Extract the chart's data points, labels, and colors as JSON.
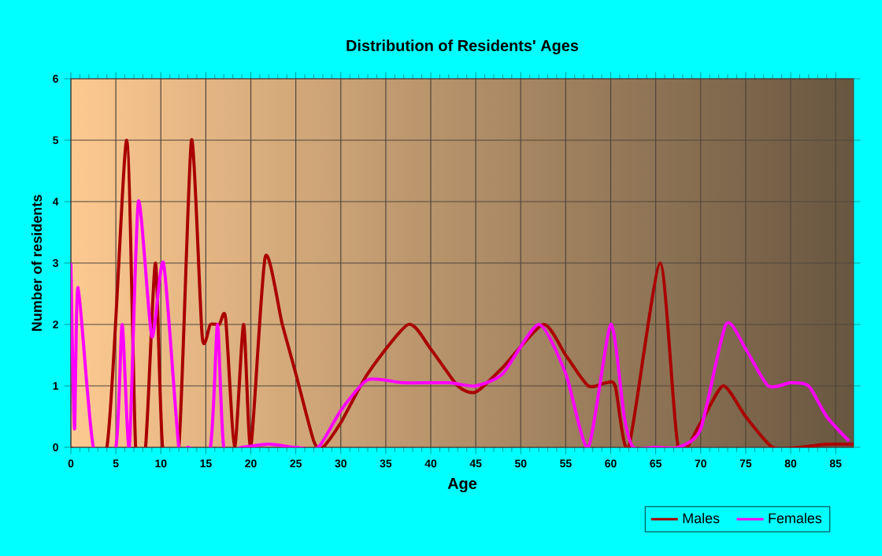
{
  "chart_data": {
    "type": "line",
    "title": "Distribution of Residents' Ages",
    "xlabel": "Age",
    "ylabel": "Number of residents",
    "xlim": [
      0,
      87
    ],
    "xticks": [
      0,
      5,
      10,
      15,
      20,
      25,
      30,
      35,
      40,
      45,
      50,
      55,
      60,
      65,
      70,
      75,
      80,
      85
    ],
    "ylim": [
      0,
      6
    ],
    "yticks": [
      0,
      1,
      2,
      3,
      4,
      5,
      6
    ],
    "grid": true,
    "legend": "bottom right",
    "marker": "none",
    "line_style": "solid",
    "series": [
      {
        "name": "Males",
        "color": "#aa0000",
        "x": [
          0,
          4,
          6.2,
          7.2,
          8.3,
          9.4,
          10.2,
          12,
          13.4,
          14.6,
          15.5,
          16.5,
          17.2,
          18.2,
          19.2,
          20,
          21.6,
          23.5,
          25,
          27,
          28,
          30,
          33,
          37.5,
          40,
          43,
          45,
          48,
          52.5,
          55,
          57.5,
          59.5,
          60.5,
          62,
          65.5,
          67.5,
          70,
          72.5,
          75,
          78,
          81,
          84,
          87
        ],
        "values": [
          0,
          0,
          5,
          0,
          0,
          3,
          0,
          0,
          5,
          1.8,
          2,
          2,
          2.1,
          0,
          2,
          0,
          3.1,
          2,
          1.2,
          0.1,
          0,
          0.4,
          1.2,
          2,
          1.6,
          1,
          0.9,
          1.3,
          2,
          1.5,
          1,
          1.05,
          1,
          0,
          3,
          0,
          0.4,
          1,
          0.5,
          0,
          0,
          0.05,
          0.05
        ]
      },
      {
        "name": "Females",
        "color": "#ff00ff",
        "x": [
          0,
          0.4,
          0.8,
          2.5,
          5,
          5.7,
          6.5,
          7.5,
          9,
          10.3,
          12,
          13,
          15.5,
          16.3,
          17,
          19,
          22,
          25,
          27.5,
          30,
          33,
          37,
          42,
          45,
          48,
          52,
          55,
          57.5,
          60,
          61.5,
          62.5,
          65,
          67.5,
          70,
          72.8,
          75,
          77.5,
          80,
          82,
          84,
          86.5
        ],
        "values": [
          3,
          0.3,
          2.6,
          0,
          0,
          2,
          0,
          4,
          1.8,
          3,
          0,
          0,
          0,
          2,
          0,
          0,
          0.05,
          0,
          0,
          0.6,
          1.1,
          1.05,
          1.05,
          1,
          1.2,
          2,
          1.2,
          0,
          2,
          0.5,
          0,
          0,
          0,
          0.3,
          2,
          1.6,
          1,
          1.05,
          1,
          0.5,
          0.1
        ]
      }
    ]
  }
}
